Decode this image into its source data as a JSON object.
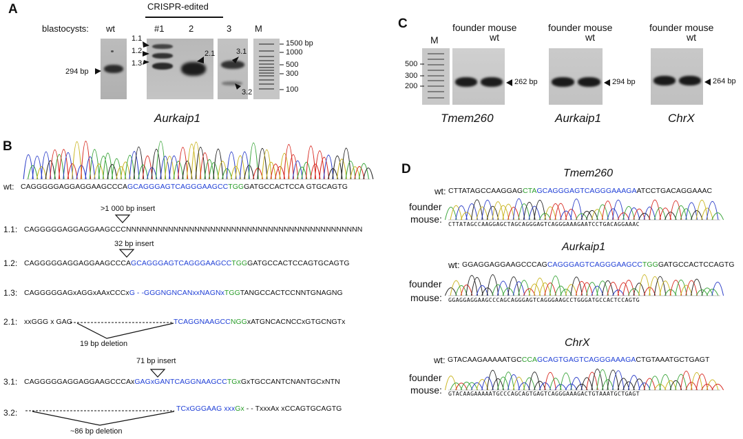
{
  "panels": {
    "A": "A",
    "B": "B",
    "C": "C",
    "D": "D"
  },
  "panelA": {
    "row_label": "blastocysts:",
    "lanes": [
      "wt",
      "#1",
      "2",
      "3",
      "M"
    ],
    "group_label": "CRISPR-edited",
    "band_marks": [
      "294 bp",
      "1.1",
      "1.2",
      "1.3",
      "2.1",
      "3.1",
      "3.2"
    ],
    "ladder": [
      "1500 bp",
      "1000",
      "500",
      "300",
      "100"
    ],
    "gene": "Aurkaip1"
  },
  "panelB": {
    "wt_label": "wt:",
    "wt_seq": {
      "pre": "CAGGGGGAGGAGGAAGCCCA",
      "blue": "GCAGGGAGTCAGGGAAGCC",
      "green": "TGG",
      "post": "GATGCCACTCCA GTGCAGTG"
    },
    "rows": [
      {
        "label": "1.1:",
        "annotation": ">1 000 bp insert",
        "pre": "CAGGGGGAGGAGGAAGCCCNNNNNNNNNNNNNNNNNNNNNNNNNNNNNNNNNNNNNNNNNNNNN",
        "blue": "",
        "green": "",
        "post": ""
      },
      {
        "label": "1.2:",
        "annotation": "32 bp insert",
        "pre": "CAGGGGGAGGAGGAAGCCCA",
        "blue": "GCAGGGAGTCAGGGAAGCC",
        "green": "TGG",
        "post": "GATGCCACTCCAGTGCAGTG"
      },
      {
        "label": "1.3:",
        "annotation": "",
        "pre": "CAGGGGGAGxAGGxAAxCCCx",
        "blue": "G - -GGGNGNCANxxNAGNx",
        "green": "TGG",
        "post": "TANGCCACTCCNNTGNAGNG"
      },
      {
        "label": "2.1:",
        "annotation": "19 bp deletion",
        "pre": "xxGGG x GAG",
        "blue": "TCAGGNAAGCC",
        "green": "NGG",
        "post": "xATGNCACNCCxGTGCNGTx"
      },
      {
        "label": "3.1:",
        "annotation": "71 bp insert",
        "pre": "CAGGGGGAGGAGGAAGCCCAx",
        "blue": "GAGxGANTCAGGNAAGCC",
        "green": "TGx",
        "post": "GxTGCCANTCNANTGCxNTN"
      },
      {
        "label": "3.2:",
        "annotation": "~86 bp deletion",
        "pre": "",
        "blue": "TCxGGGAAG xxx",
        "green": "Gx",
        "post": "- - TxxxAx xCCAGTGCAGTG"
      }
    ]
  },
  "panelC": {
    "ladder_label": "M",
    "ladder": [
      "500",
      "300",
      "200"
    ],
    "lane_header_a": "founder mouse",
    "lane_header_b": "wt",
    "gels": [
      {
        "gene": "Tmem260",
        "size": "262 bp"
      },
      {
        "gene": "Aurkaip1",
        "size": "294 bp"
      },
      {
        "gene": "ChrX",
        "size": "264 bp"
      }
    ]
  },
  "panelD": {
    "wt_label": "wt:",
    "founder_label_1": "founder",
    "founder_label_2": "mouse:",
    "entries": [
      {
        "gene": "Tmem260",
        "pre": "CTTATAGCCAAGGAG",
        "green1": "CTA",
        "blue": "GCAGGGAGTCAGGGAAAGA",
        "green2": "",
        "post": "ATCCTGACAGGAAAC",
        "read": "CTTATAGCCAAGGAGCTAGCAGGGAGTCAGGGAAAGAATCCTGACAGGAAAC"
      },
      {
        "gene": "Aurkaip1",
        "pre": "GGAGGAGGAAGCCCAG",
        "green1": "",
        "blue": "CAGGGAGTCAGGGAAGCC",
        "green2": "TGG",
        "post": "GATGCCACTCCAGTG",
        "read": "GGAGGAGGAAGCCCAGCAGGGAGTCAGGGAAGCCTGGGATGCCACTCCAGTG"
      },
      {
        "gene": "ChrX",
        "pre": "GTACAAGAAAAATGC",
        "green1": "CCA",
        "blue": "GCAGTGAGTCAGGGAAAGA",
        "green2": "",
        "post": "CTGTAAATGCTGAGT",
        "read": "GTACAAGAAAAATGCCCAGCAGTGAGTCAGGGAAAGACTGTAAATGCTGAGT"
      }
    ]
  },
  "colors": {
    "blue": "#1f3fd6",
    "green": "#2a9d2a",
    "trace_red": "#d7281f",
    "trace_green": "#3aa53a",
    "trace_blue": "#2a3cc8",
    "trace_black": "#222222",
    "trace_yellow": "#c9b41d"
  }
}
